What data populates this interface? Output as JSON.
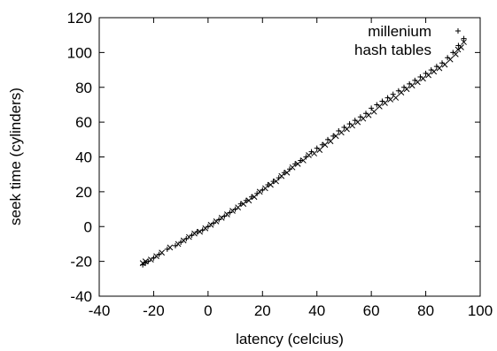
{
  "chart_data": {
    "type": "scatter",
    "xlabel": "latency (celcius)",
    "ylabel": "seek time (cylinders)",
    "xlim": [
      -40,
      100
    ],
    "ylim": [
      -40,
      120
    ],
    "xticks": [
      -40,
      -20,
      0,
      20,
      40,
      60,
      80,
      100
    ],
    "yticks": [
      -40,
      -20,
      0,
      20,
      40,
      60,
      80,
      100,
      120
    ],
    "xtick_labels": [
      "-40",
      "-20",
      "0",
      "20",
      "40",
      "60",
      "80",
      "100"
    ],
    "ytick_labels": [
      "-40",
      "-20",
      "0",
      "20",
      "40",
      "60",
      "80",
      "100",
      "120"
    ],
    "grid": false,
    "legend_position": "top-right",
    "series": [
      {
        "name": "millenium",
        "marker": "plus",
        "x": [
          -24,
          -23,
          -22,
          -20,
          -18,
          -15,
          -12,
          -10,
          -8,
          -6,
          -4,
          -2,
          0,
          2,
          4,
          6,
          8,
          10,
          12,
          14,
          16,
          18,
          20,
          22,
          24,
          26,
          28,
          30,
          32,
          34,
          36,
          38,
          40,
          42,
          44,
          46,
          48,
          50,
          52,
          54,
          56,
          58,
          60,
          62,
          64,
          66,
          68,
          70,
          72,
          74,
          76,
          78,
          80,
          82,
          84,
          86,
          88,
          90,
          92,
          94
        ],
        "y": [
          -22,
          -21,
          -20,
          -18,
          -16,
          -13,
          -11,
          -9,
          -7,
          -5,
          -3,
          -2,
          0,
          2,
          4,
          6,
          8,
          10,
          13,
          15,
          17,
          19,
          21,
          24,
          26,
          28,
          31,
          33,
          36,
          38,
          40,
          43,
          45,
          47,
          50,
          52,
          55,
          57,
          59,
          61,
          63,
          65,
          68,
          70,
          72,
          74,
          76,
          78,
          80,
          82,
          84,
          86,
          88,
          90,
          92,
          94,
          97,
          100,
          104,
          108
        ]
      },
      {
        "name": "hash tables",
        "marker": "cross",
        "x": [
          -24,
          -23,
          -21,
          -19,
          -17,
          -14,
          -11,
          -9,
          -7,
          -5,
          -3,
          -1,
          1,
          3,
          5,
          7,
          9,
          11,
          13,
          15,
          17,
          19,
          21,
          23,
          25,
          27,
          29,
          31,
          33,
          35,
          37,
          39,
          41,
          43,
          45,
          47,
          49,
          51,
          53,
          55,
          57,
          59,
          61,
          63,
          65,
          67,
          69,
          71,
          73,
          75,
          77,
          79,
          81,
          83,
          85,
          87,
          89,
          91,
          93,
          94
        ],
        "y": [
          -21,
          -20,
          -19,
          -17,
          -15,
          -12,
          -10,
          -8,
          -6,
          -4,
          -3,
          -1,
          1,
          3,
          5,
          7,
          9,
          11,
          13,
          15,
          17,
          20,
          22,
          24,
          26,
          29,
          31,
          34,
          36,
          38,
          41,
          42,
          44,
          47,
          49,
          52,
          54,
          56,
          58,
          60,
          62,
          64,
          66,
          69,
          71,
          73,
          74,
          77,
          79,
          81,
          83,
          85,
          87,
          89,
          91,
          93,
          96,
          99,
          103,
          106
        ]
      }
    ]
  }
}
